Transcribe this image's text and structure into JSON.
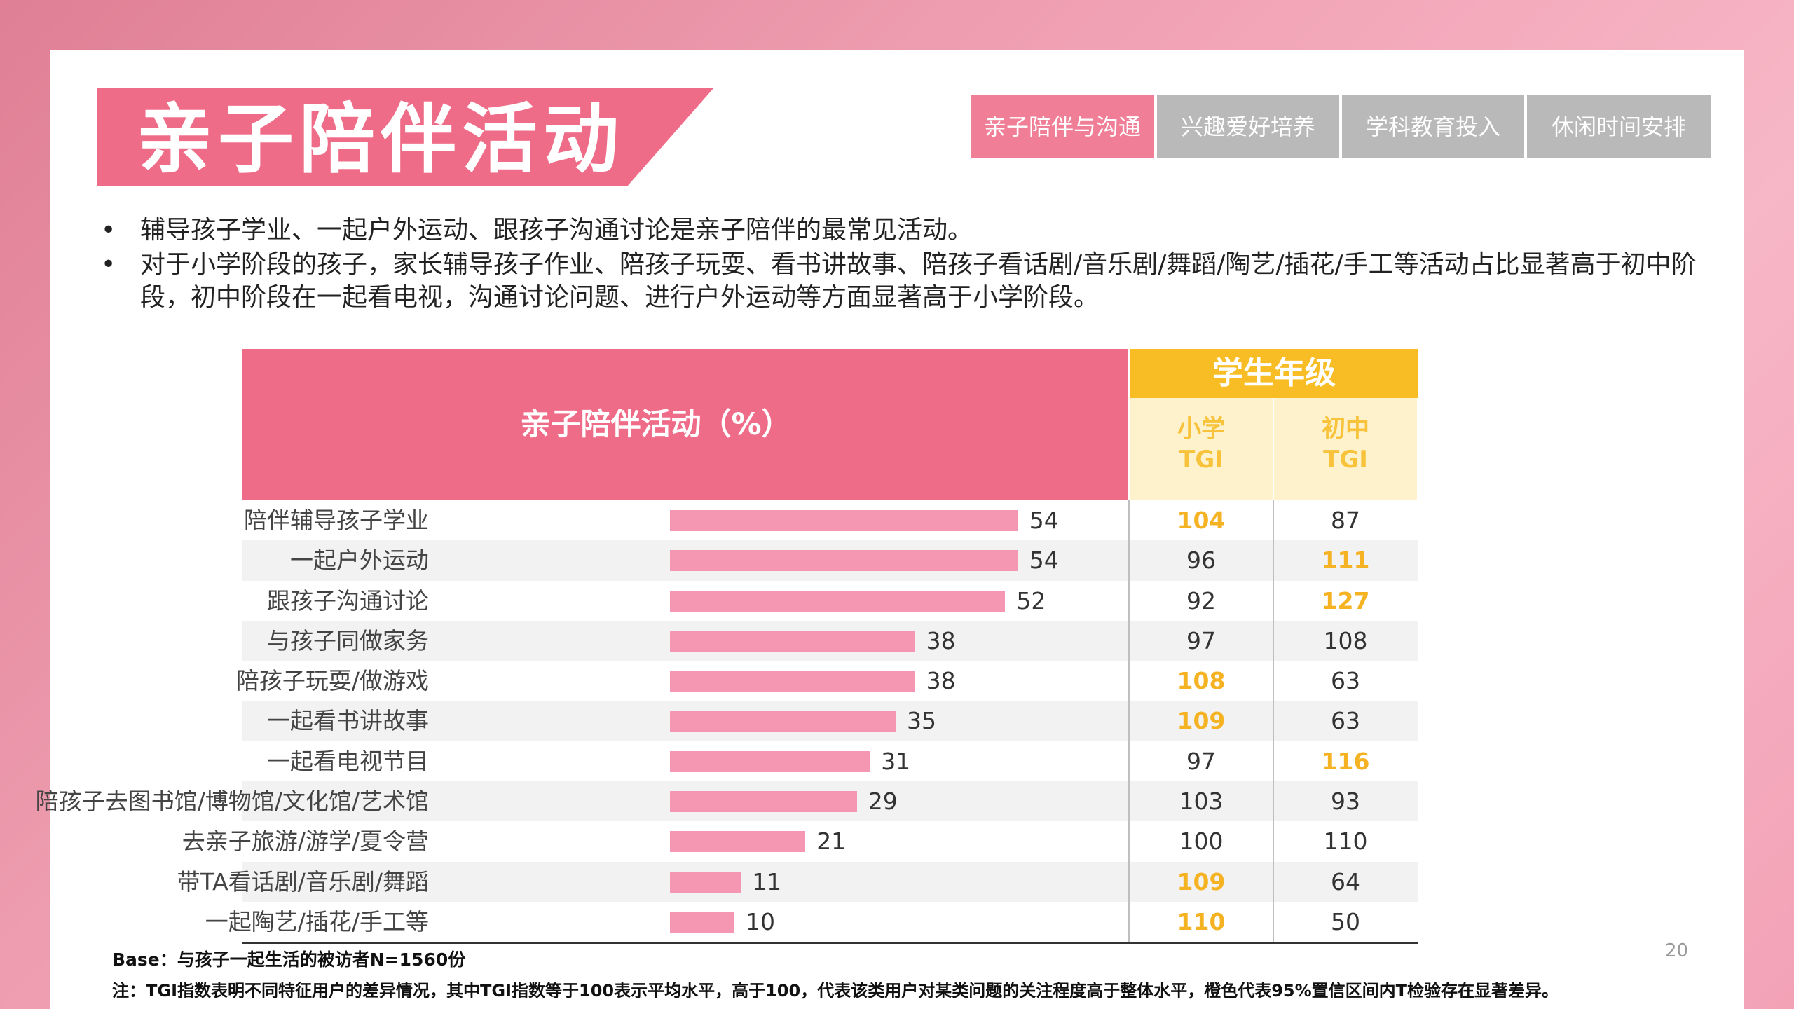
{
  "slide": {
    "title": "亲子陪伴活动",
    "page_number": "20",
    "colors": {
      "accent": "#ef6c88",
      "bar": "#f597b3",
      "tgi_header": "#f8bd24",
      "tgi_highlight": "#f5b324",
      "tab_inactive": "#b9b9b9"
    }
  },
  "tabs": [
    {
      "label": "亲子陪伴与沟通",
      "active": true
    },
    {
      "label": "兴趣爱好培养",
      "active": false
    },
    {
      "label": "学科教育投入",
      "active": false
    },
    {
      "label": "休闲时间安排",
      "active": false
    }
  ],
  "bullets": [
    {
      "marker": "•",
      "text": "辅导孩子学业、一起户外运动、跟孩子沟通讨论是亲子陪伴的最常见活动。"
    },
    {
      "marker": "•",
      "text": "对于小学阶段的孩子，家长辅导孩子作业、陪孩子玩耍、看书讲故事、陪孩子看话剧/音乐剧/舞蹈/陶艺/插花/手工等活动占比显著高于初中阶段，初中阶段在一起看电视，沟通讨论问题、进行户外运动等方面显著高于小学阶段。"
    }
  ],
  "table": {
    "header": "亲子陪伴活动（%）",
    "tgi_group": "学生年级",
    "tgi_col1": {
      "line1": "小学",
      "line2": "TGI"
    },
    "tgi_col2": {
      "line1": "初中",
      "line2": "TGI"
    }
  },
  "chart_data": {
    "type": "bar",
    "orientation": "horizontal",
    "title": "亲子陪伴活动（%）",
    "categories": [
      "陪伴辅导孩子学业",
      "一起户外运动",
      "跟孩子沟通讨论",
      "与孩子同做家务",
      "陪孩子玩耍/做游戏",
      "一起看书讲故事",
      "一起看电视节目",
      "陪孩子去图书馆/博物馆/文化馆/艺术馆",
      "去亲子旅游/游学/夏令营",
      "带TA看话剧/音乐剧/舞蹈",
      "一起陶艺/插花/手工等"
    ],
    "values": [
      54,
      54,
      52,
      38,
      38,
      35,
      31,
      29,
      21,
      11,
      10
    ],
    "xlim": [
      0,
      100
    ],
    "tgi": {
      "group": "学生年级",
      "columns": [
        "小学 TGI",
        "初中 TGI"
      ],
      "primary": [
        104,
        96,
        92,
        97,
        108,
        109,
        97,
        103,
        100,
        109,
        110
      ],
      "middle": [
        87,
        111,
        127,
        108,
        63,
        63,
        116,
        93,
        110,
        64,
        50
      ],
      "primary_highlight": [
        true,
        false,
        false,
        false,
        true,
        true,
        false,
        false,
        false,
        true,
        true
      ],
      "middle_highlight": [
        false,
        true,
        true,
        false,
        false,
        false,
        true,
        false,
        false,
        false,
        false
      ]
    }
  },
  "notes": {
    "base": "Base：与孩子一起生活的被访者N=1560份",
    "footnote": "注：TGI指数表明不同特征用户的差异情况，其中TGI指数等于100表示平均水平，高于100，代表该类用户对某类问题的关注程度高于整体水平，橙色代表95%置信区间内T检验存在显著差异。"
  }
}
